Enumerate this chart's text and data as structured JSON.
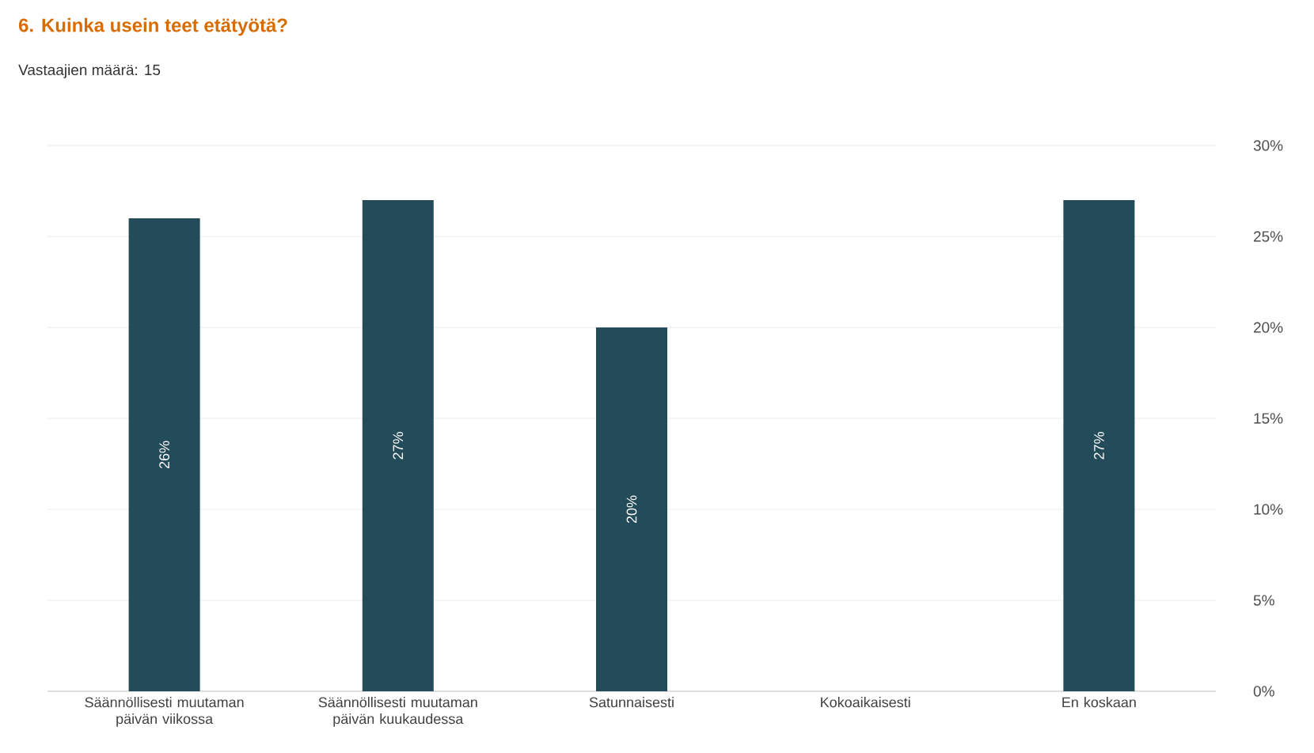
{
  "chart_data": {
    "type": "bar",
    "title": "6. Kuinka usein teet etätyötä?",
    "subtitle": "Vastaajien määrä: 15",
    "categories": [
      "Säännöllisesti muutaman päivän viikossa",
      "Säännöllisesti muutaman päivän kuukaudessa",
      "Satunnaisesti",
      "Kokoaikaisesti",
      "En koskaan"
    ],
    "values": [
      26,
      27,
      20,
      0,
      27
    ],
    "value_labels": [
      "26%",
      "27%",
      "20%",
      null,
      "27%"
    ],
    "color": "#244b59",
    "ylim": [
      0,
      30
    ],
    "yticks": [
      {
        "value": 0,
        "label": "0%"
      },
      {
        "value": 5,
        "label": "5%"
      },
      {
        "value": 10,
        "label": "10%"
      },
      {
        "value": 15,
        "label": "15%"
      },
      {
        "value": 20,
        "label": "20%"
      },
      {
        "value": 25,
        "label": "25%"
      },
      {
        "value": 30,
        "label": "30%"
      }
    ],
    "grid": "y"
  }
}
